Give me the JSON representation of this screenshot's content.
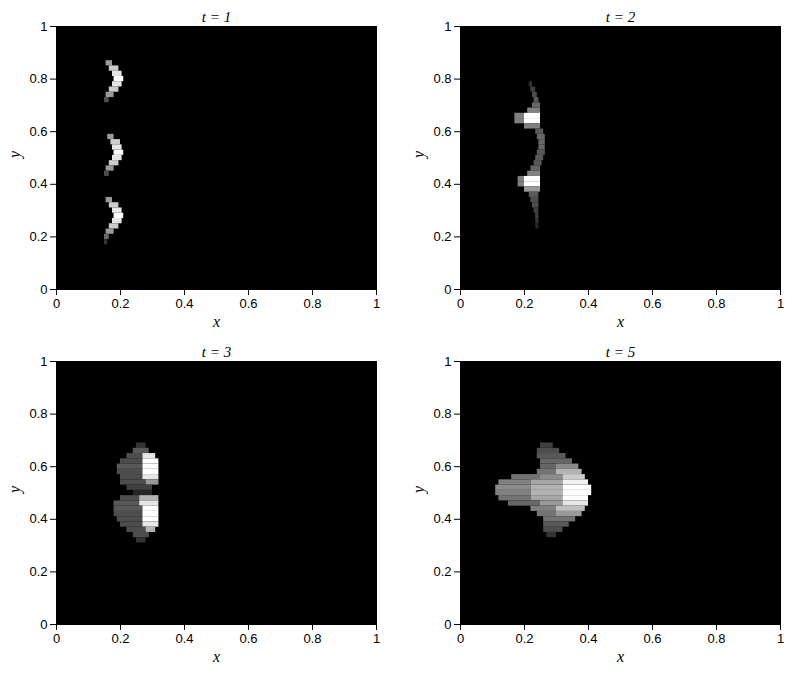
{
  "chart_data": [
    {
      "type": "heatmap",
      "title": "t = 1",
      "xlabel": "x",
      "ylabel": "y",
      "xlim": [
        0,
        1
      ],
      "ylim": [
        0,
        1
      ],
      "xticks": [
        0,
        0.2,
        0.4,
        0.6,
        0.8,
        1
      ],
      "yticks": [
        0,
        0.2,
        0.4,
        0.6,
        0.8,
        1
      ],
      "color": "#ffffff",
      "zlim": [
        0,
        1
      ],
      "row_height": 0.02,
      "cells": [
        [
          0.86,
          0.155,
          0.175,
          0.6
        ],
        [
          0.84,
          0.165,
          0.195,
          0.8
        ],
        [
          0.82,
          0.175,
          0.205,
          0.9
        ],
        [
          0.8,
          0.18,
          0.21,
          1
        ],
        [
          0.78,
          0.175,
          0.205,
          0.9
        ],
        [
          0.76,
          0.165,
          0.195,
          0.8
        ],
        [
          0.74,
          0.155,
          0.18,
          0.6
        ],
        [
          0.72,
          0.15,
          0.165,
          0.3
        ],
        [
          0.58,
          0.16,
          0.18,
          0.6
        ],
        [
          0.56,
          0.17,
          0.2,
          0.8
        ],
        [
          0.54,
          0.175,
          0.205,
          0.9
        ],
        [
          0.52,
          0.18,
          0.21,
          1
        ],
        [
          0.5,
          0.175,
          0.205,
          0.9
        ],
        [
          0.48,
          0.165,
          0.195,
          0.8
        ],
        [
          0.46,
          0.155,
          0.18,
          0.6
        ],
        [
          0.44,
          0.15,
          0.165,
          0.3
        ],
        [
          0.34,
          0.155,
          0.175,
          0.6
        ],
        [
          0.32,
          0.165,
          0.195,
          0.8
        ],
        [
          0.3,
          0.175,
          0.205,
          0.9
        ],
        [
          0.28,
          0.18,
          0.21,
          1
        ],
        [
          0.26,
          0.175,
          0.205,
          0.9
        ],
        [
          0.24,
          0.165,
          0.195,
          0.8
        ],
        [
          0.22,
          0.155,
          0.18,
          0.6
        ],
        [
          0.2,
          0.15,
          0.165,
          0.4
        ],
        [
          0.18,
          0.15,
          0.16,
          0.2
        ]
      ]
    },
    {
      "type": "heatmap",
      "title": "t = 2",
      "xlabel": "x",
      "ylabel": "y",
      "xlim": [
        0,
        1
      ],
      "ylim": [
        0,
        1
      ],
      "xticks": [
        0,
        0.2,
        0.4,
        0.6,
        0.8,
        1
      ],
      "yticks": [
        0,
        0.2,
        0.4,
        0.6,
        0.8,
        1
      ],
      "color": "#ffffff",
      "zlim": [
        0,
        1
      ],
      "row_height": 0.02,
      "cells": [
        [
          0.78,
          0.215,
          0.225,
          0.2
        ],
        [
          0.76,
          0.22,
          0.235,
          0.25
        ],
        [
          0.74,
          0.225,
          0.24,
          0.3
        ],
        [
          0.72,
          0.23,
          0.245,
          0.35
        ],
        [
          0.7,
          0.225,
          0.25,
          0.4
        ],
        [
          0.68,
          0.21,
          0.25,
          0.5
        ],
        [
          0.66,
          0.17,
          0.2,
          0.5
        ],
        [
          0.66,
          0.2,
          0.25,
          1
        ],
        [
          0.64,
          0.17,
          0.2,
          0.5
        ],
        [
          0.64,
          0.2,
          0.25,
          1
        ],
        [
          0.62,
          0.2,
          0.25,
          0.5
        ],
        [
          0.6,
          0.235,
          0.26,
          0.35
        ],
        [
          0.58,
          0.24,
          0.265,
          0.4
        ],
        [
          0.56,
          0.245,
          0.265,
          0.4
        ],
        [
          0.54,
          0.245,
          0.265,
          0.4
        ],
        [
          0.52,
          0.24,
          0.265,
          0.35
        ],
        [
          0.5,
          0.235,
          0.26,
          0.35
        ],
        [
          0.48,
          0.23,
          0.255,
          0.35
        ],
        [
          0.46,
          0.22,
          0.25,
          0.4
        ],
        [
          0.44,
          0.21,
          0.25,
          0.5
        ],
        [
          0.42,
          0.18,
          0.2,
          0.5
        ],
        [
          0.42,
          0.2,
          0.25,
          1
        ],
        [
          0.4,
          0.18,
          0.2,
          0.5
        ],
        [
          0.4,
          0.2,
          0.25,
          1
        ],
        [
          0.38,
          0.2,
          0.25,
          0.6
        ],
        [
          0.36,
          0.215,
          0.245,
          0.35
        ],
        [
          0.34,
          0.22,
          0.245,
          0.3
        ],
        [
          0.32,
          0.225,
          0.245,
          0.3
        ],
        [
          0.3,
          0.23,
          0.245,
          0.25
        ],
        [
          0.28,
          0.235,
          0.245,
          0.25
        ],
        [
          0.26,
          0.235,
          0.245,
          0.2
        ],
        [
          0.24,
          0.235,
          0.245,
          0.15
        ]
      ]
    },
    {
      "type": "heatmap",
      "title": "t = 3",
      "xlabel": "x",
      "ylabel": "y",
      "xlim": [
        0,
        1
      ],
      "ylim": [
        0,
        1
      ],
      "xticks": [
        0,
        0.2,
        0.4,
        0.6,
        0.8,
        1
      ],
      "yticks": [
        0,
        0.2,
        0.4,
        0.6,
        0.8,
        1
      ],
      "color": "#ffffff",
      "zlim": [
        0,
        1
      ],
      "row_height": 0.02,
      "cells": [
        [
          0.68,
          0.25,
          0.28,
          0.2
        ],
        [
          0.66,
          0.24,
          0.29,
          0.35
        ],
        [
          0.64,
          0.22,
          0.27,
          0.3
        ],
        [
          0.64,
          0.27,
          0.31,
          0.9
        ],
        [
          0.62,
          0.2,
          0.27,
          0.3
        ],
        [
          0.62,
          0.27,
          0.32,
          1
        ],
        [
          0.6,
          0.19,
          0.27,
          0.35
        ],
        [
          0.6,
          0.27,
          0.32,
          1
        ],
        [
          0.58,
          0.19,
          0.27,
          0.3
        ],
        [
          0.58,
          0.27,
          0.32,
          1
        ],
        [
          0.56,
          0.2,
          0.27,
          0.3
        ],
        [
          0.56,
          0.27,
          0.32,
          0.9
        ],
        [
          0.54,
          0.2,
          0.28,
          0.3
        ],
        [
          0.54,
          0.28,
          0.32,
          0.6
        ],
        [
          0.52,
          0.22,
          0.3,
          0.25
        ],
        [
          0.5,
          0.24,
          0.3,
          0.15
        ],
        [
          0.48,
          0.2,
          0.26,
          0.3
        ],
        [
          0.48,
          0.26,
          0.32,
          0.7
        ],
        [
          0.46,
          0.18,
          0.26,
          0.35
        ],
        [
          0.46,
          0.26,
          0.32,
          0.9
        ],
        [
          0.44,
          0.18,
          0.27,
          0.35
        ],
        [
          0.44,
          0.27,
          0.32,
          1
        ],
        [
          0.42,
          0.18,
          0.27,
          0.3
        ],
        [
          0.42,
          0.27,
          0.32,
          1
        ],
        [
          0.4,
          0.19,
          0.27,
          0.3
        ],
        [
          0.4,
          0.27,
          0.32,
          1
        ],
        [
          0.38,
          0.2,
          0.27,
          0.3
        ],
        [
          0.38,
          0.27,
          0.32,
          0.9
        ],
        [
          0.36,
          0.22,
          0.28,
          0.3
        ],
        [
          0.36,
          0.28,
          0.31,
          0.7
        ],
        [
          0.34,
          0.24,
          0.29,
          0.3
        ],
        [
          0.32,
          0.25,
          0.28,
          0.2
        ]
      ]
    },
    {
      "type": "heatmap",
      "title": "t = 5",
      "xlabel": "x",
      "ylabel": "y",
      "xlim": [
        0,
        1
      ],
      "ylim": [
        0,
        1
      ],
      "xticks": [
        0,
        0.2,
        0.4,
        0.6,
        0.8,
        1
      ],
      "yticks": [
        0,
        0.2,
        0.4,
        0.6,
        0.8,
        1
      ],
      "color": "#ffffff",
      "zlim": [
        0,
        1
      ],
      "row_height": 0.02,
      "cells": [
        [
          0.68,
          0.25,
          0.29,
          0.25
        ],
        [
          0.66,
          0.24,
          0.31,
          0.3
        ],
        [
          0.64,
          0.24,
          0.33,
          0.35
        ],
        [
          0.62,
          0.25,
          0.35,
          0.4
        ],
        [
          0.6,
          0.25,
          0.3,
          0.4
        ],
        [
          0.6,
          0.3,
          0.37,
          0.55
        ],
        [
          0.58,
          0.24,
          0.3,
          0.45
        ],
        [
          0.58,
          0.3,
          0.38,
          0.7
        ],
        [
          0.56,
          0.16,
          0.25,
          0.45
        ],
        [
          0.56,
          0.25,
          0.32,
          0.55
        ],
        [
          0.56,
          0.32,
          0.39,
          0.8
        ],
        [
          0.54,
          0.12,
          0.22,
          0.5
        ],
        [
          0.54,
          0.22,
          0.32,
          0.65
        ],
        [
          0.54,
          0.32,
          0.4,
          0.95
        ],
        [
          0.52,
          0.11,
          0.22,
          0.55
        ],
        [
          0.52,
          0.22,
          0.32,
          0.7
        ],
        [
          0.52,
          0.32,
          0.41,
          1
        ],
        [
          0.5,
          0.11,
          0.22,
          0.5
        ],
        [
          0.5,
          0.22,
          0.32,
          0.7
        ],
        [
          0.5,
          0.32,
          0.41,
          1
        ],
        [
          0.48,
          0.12,
          0.22,
          0.45
        ],
        [
          0.48,
          0.22,
          0.32,
          0.65
        ],
        [
          0.48,
          0.32,
          0.4,
          1
        ],
        [
          0.46,
          0.15,
          0.25,
          0.4
        ],
        [
          0.46,
          0.25,
          0.32,
          0.6
        ],
        [
          0.46,
          0.32,
          0.4,
          0.9
        ],
        [
          0.44,
          0.22,
          0.3,
          0.5
        ],
        [
          0.44,
          0.3,
          0.39,
          0.75
        ],
        [
          0.42,
          0.24,
          0.3,
          0.45
        ],
        [
          0.42,
          0.3,
          0.38,
          0.6
        ],
        [
          0.4,
          0.26,
          0.36,
          0.45
        ],
        [
          0.38,
          0.26,
          0.34,
          0.35
        ],
        [
          0.36,
          0.26,
          0.32,
          0.3
        ],
        [
          0.34,
          0.27,
          0.3,
          0.2
        ]
      ]
    }
  ]
}
